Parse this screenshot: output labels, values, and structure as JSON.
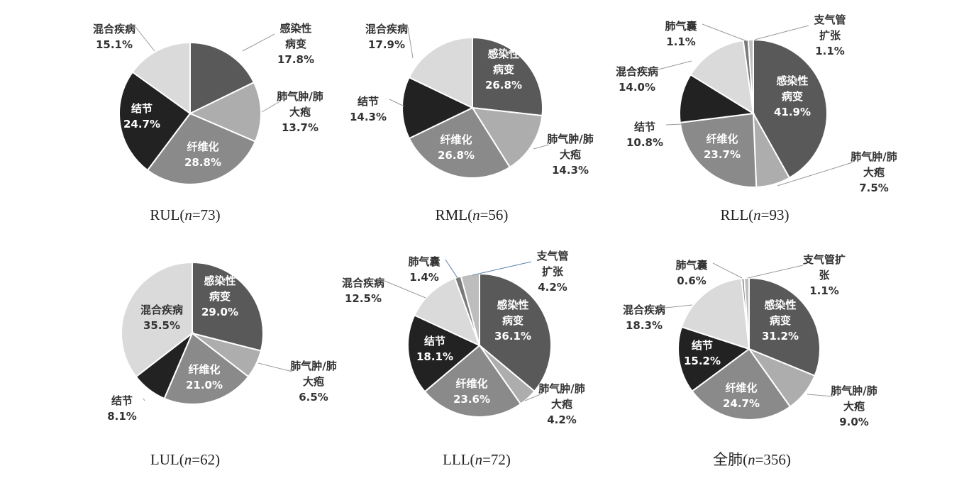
{
  "colors": {
    "感染性病变": "#595959",
    "肺气肿/肺大疱": "#adadad",
    "纤维化": "#8a8a8a",
    "结节": "#222222",
    "混合疾病": "#dadada",
    "肺气囊": "#7a7a7a",
    "支气管扩张": "#bdbdbd",
    "leader_line": "#9a9a9a",
    "leader_line_blue": "#5b7fb0"
  },
  "chart_data": [
    {
      "type": "pie",
      "caption": "RUL(n=73)",
      "caption_prefix": "RUL(",
      "caption_n": "n",
      "caption_suffix": "=73)",
      "slices": [
        {
          "name": "感染性病变",
          "value": 17.8,
          "label": "17.8%"
        },
        {
          "name": "肺气肿/肺大疱",
          "value": 13.7,
          "label": "13.7%"
        },
        {
          "name": "纤维化",
          "value": 28.8,
          "label": "28.8%"
        },
        {
          "name": "结节",
          "value": 24.7,
          "label": "24.7%"
        },
        {
          "name": "混合疾病",
          "value": 15.1,
          "label": "15.1%"
        }
      ]
    },
    {
      "type": "pie",
      "caption": "RML(n=56)",
      "caption_prefix": "RML(",
      "caption_n": "n",
      "caption_suffix": "=56)",
      "slices": [
        {
          "name": "感染性病变",
          "value": 26.8,
          "label": "26.8%"
        },
        {
          "name": "肺气肿/肺大疱",
          "value": 14.3,
          "label": "14.3%"
        },
        {
          "name": "纤维化",
          "value": 26.8,
          "label": "26.8%"
        },
        {
          "name": "结节",
          "value": 14.3,
          "label": "14.3%"
        },
        {
          "name": "混合疾病",
          "value": 17.9,
          "label": "17.9%"
        }
      ]
    },
    {
      "type": "pie",
      "caption": "RLL(n=93)",
      "caption_prefix": "RLL(",
      "caption_n": "n",
      "caption_suffix": "=93)",
      "slices": [
        {
          "name": "感染性病变",
          "value": 41.9,
          "label": "41.9%"
        },
        {
          "name": "肺气肿/肺大疱",
          "value": 7.5,
          "label": "7.5%"
        },
        {
          "name": "纤维化",
          "value": 23.7,
          "label": "23.7%"
        },
        {
          "name": "结节",
          "value": 10.8,
          "label": "10.8%"
        },
        {
          "name": "混合疾病",
          "value": 14.0,
          "label": "14.0%"
        },
        {
          "name": "肺气囊",
          "value": 1.1,
          "label": "1.1%"
        },
        {
          "name": "支气管扩张",
          "value": 1.1,
          "label": "1.1%"
        }
      ]
    },
    {
      "type": "pie",
      "caption": "LUL(n=62)",
      "caption_prefix": "LUL(",
      "caption_n": "n",
      "caption_suffix": "=62)",
      "slices": [
        {
          "name": "感染性病变",
          "value": 29.0,
          "label": "29.0%"
        },
        {
          "name": "肺气肿/肺大疱",
          "value": 6.5,
          "label": "6.5%"
        },
        {
          "name": "纤维化",
          "value": 21.0,
          "label": "21.0%"
        },
        {
          "name": "结节",
          "value": 8.1,
          "label": "8.1%"
        },
        {
          "name": "混合疾病",
          "value": 35.5,
          "label": "35.5%"
        }
      ]
    },
    {
      "type": "pie",
      "caption": "LLL(n=72)",
      "caption_prefix": "LLL(",
      "caption_n": "n",
      "caption_suffix": "=72)",
      "slices": [
        {
          "name": "感染性病变",
          "value": 36.1,
          "label": "36.1%"
        },
        {
          "name": "肺气肿/肺大疱",
          "value": 4.2,
          "label": "4.2%"
        },
        {
          "name": "纤维化",
          "value": 23.6,
          "label": "23.6%"
        },
        {
          "name": "结节",
          "value": 18.1,
          "label": "18.1%"
        },
        {
          "name": "混合疾病",
          "value": 12.5,
          "label": "12.5%"
        },
        {
          "name": "肺气囊",
          "value": 1.4,
          "label": "1.4%"
        },
        {
          "name": "支气管扩张",
          "value": 4.2,
          "label": "4.2%"
        }
      ]
    },
    {
      "type": "pie",
      "caption": "全肺(n=356)",
      "caption_prefix": "全肺(",
      "caption_n": "n",
      "caption_suffix": "=356)",
      "slices": [
        {
          "name": "感染性病变",
          "value": 31.2,
          "label": "31.2%"
        },
        {
          "name": "肺气肿/肺大疱",
          "value": 9.0,
          "label": "9.0%"
        },
        {
          "name": "纤维化",
          "value": 24.7,
          "label": "24.7%"
        },
        {
          "name": "结节",
          "value": 15.2,
          "label": "15.2%"
        },
        {
          "name": "混合疾病",
          "value": 18.3,
          "label": "18.3%"
        },
        {
          "name": "肺气囊",
          "value": 0.6,
          "label": "0.6%"
        },
        {
          "name": "支气管扩张",
          "value": 1.1,
          "label": "1.1%"
        }
      ]
    }
  ]
}
